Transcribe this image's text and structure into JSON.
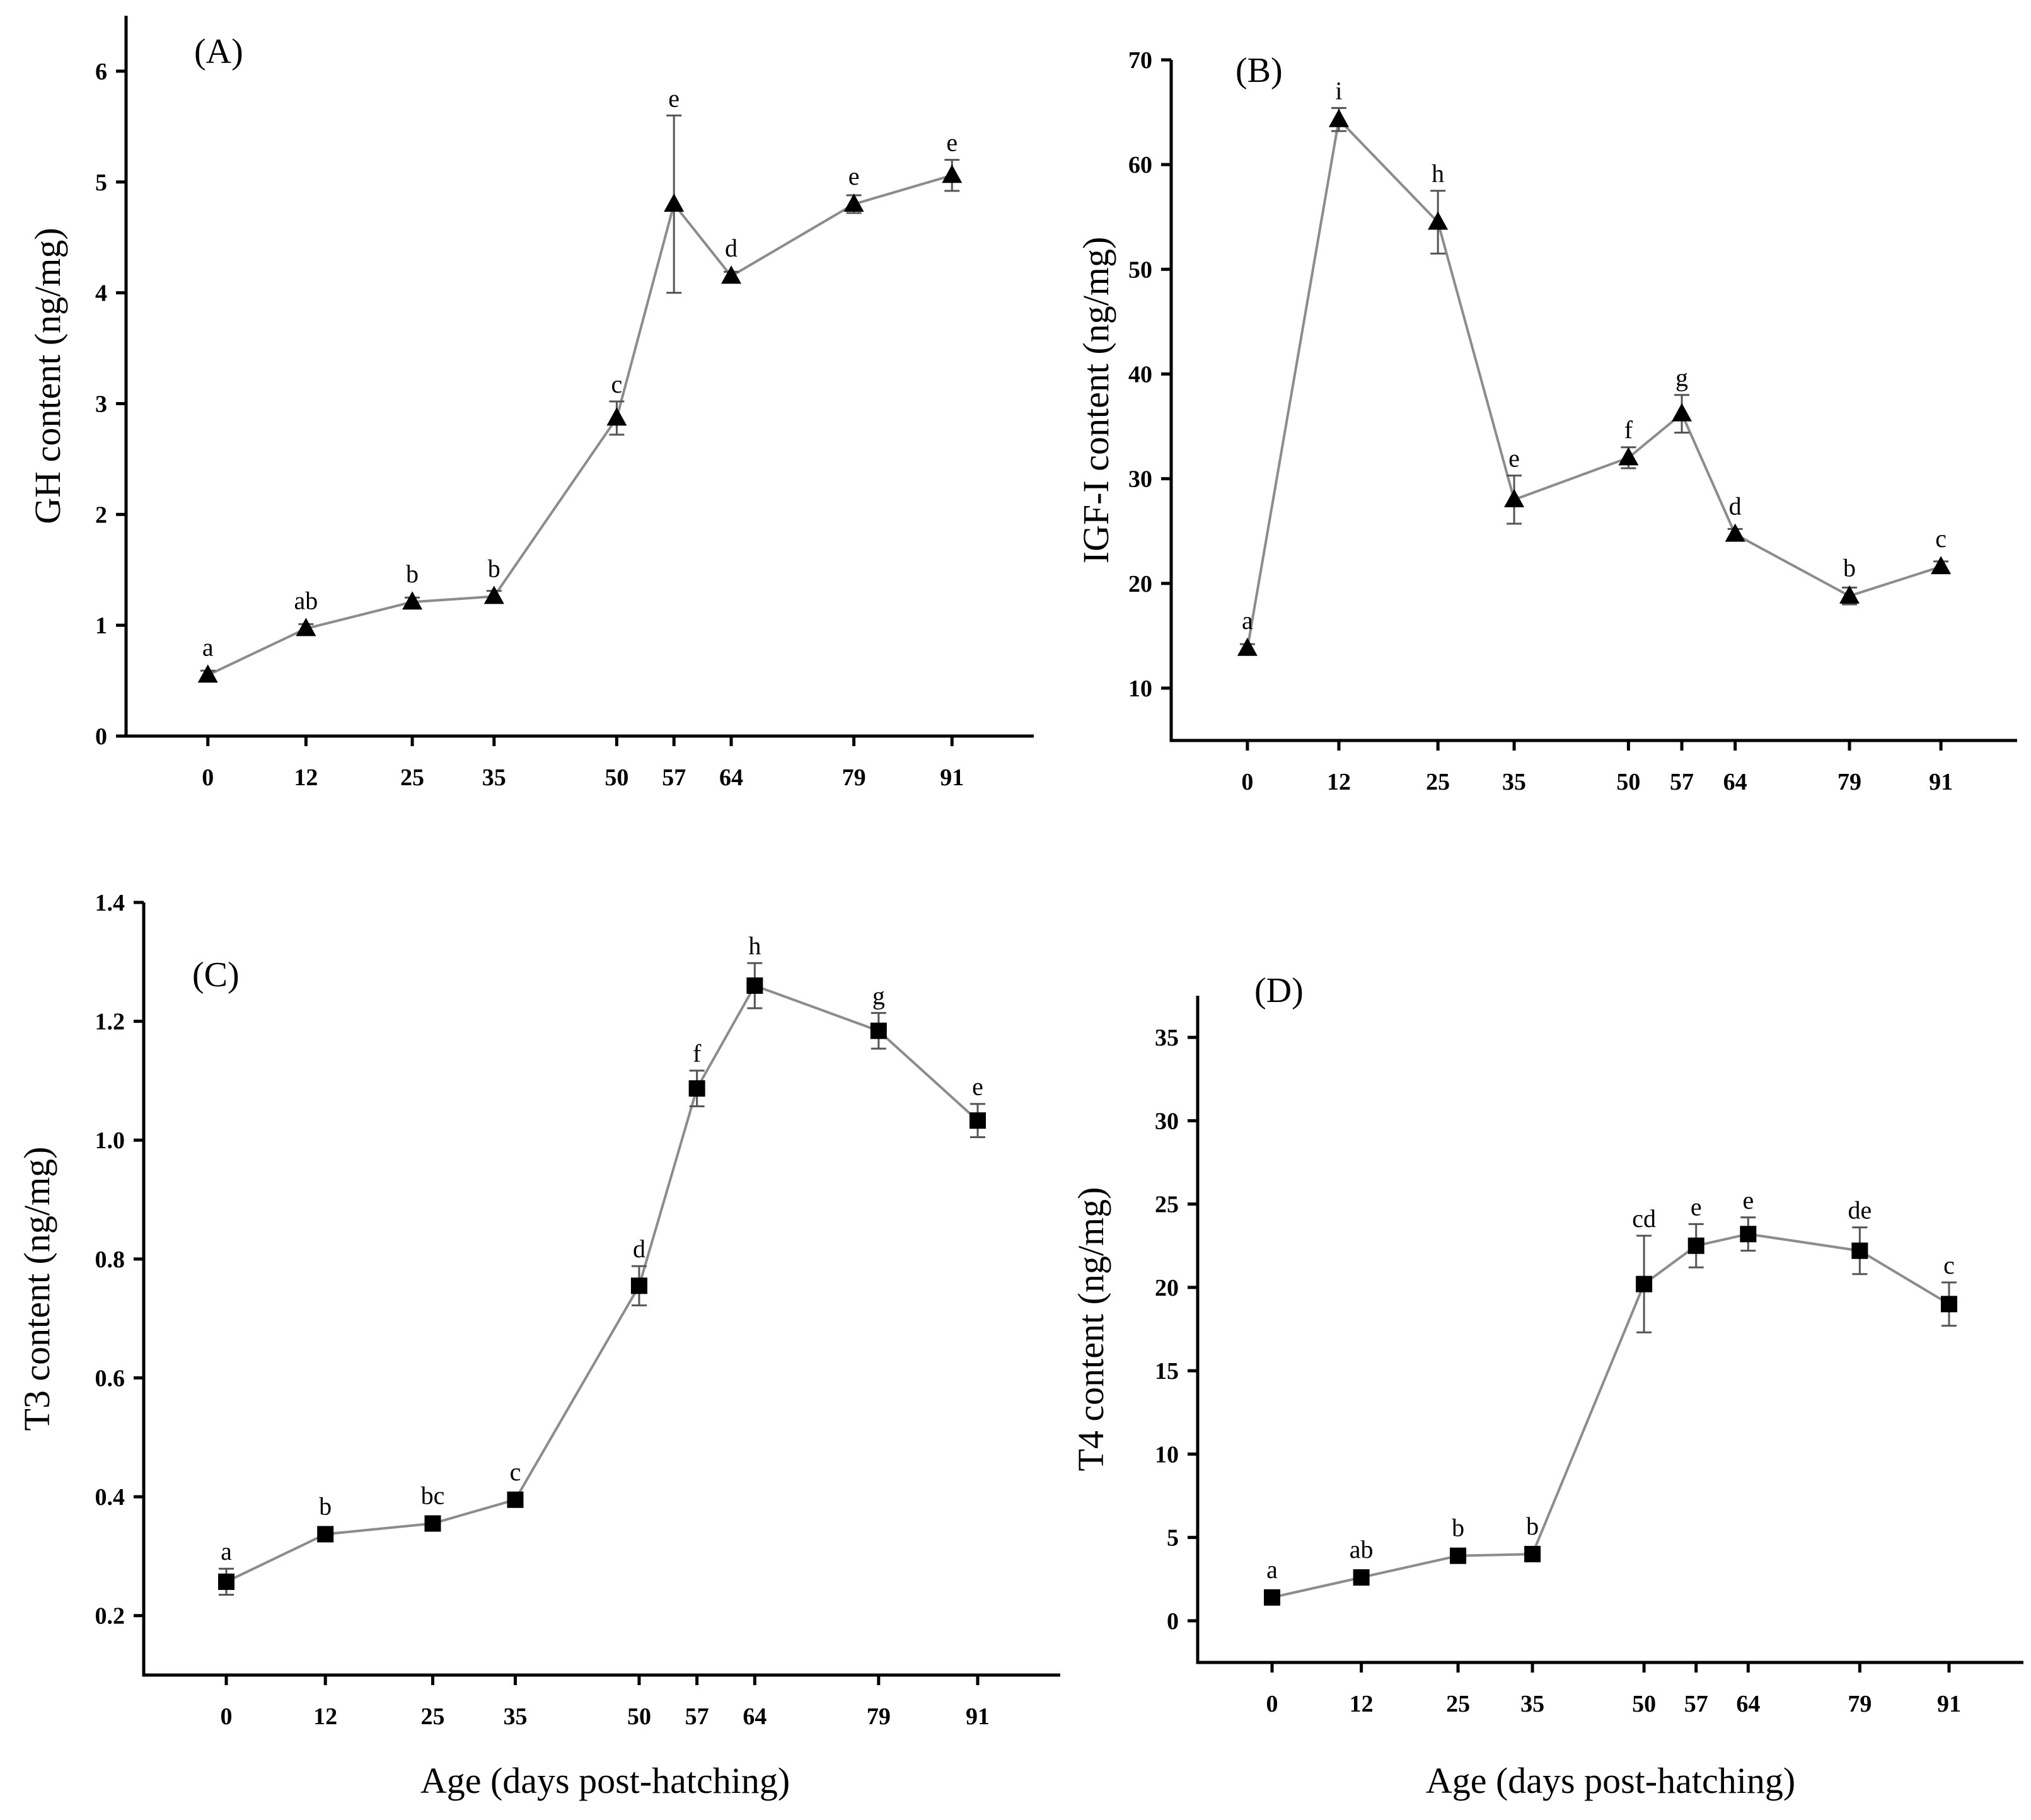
{
  "figure": {
    "x_axis_title": "Age (days post-hatching)"
  },
  "colors": {
    "line": "#8c8c8c",
    "marker": "#000000",
    "error_bar": "#555555"
  },
  "chart_data": [
    {
      "id": "A",
      "type": "line",
      "panel_label": "(A)",
      "marker": "triangle",
      "xlabel": "",
      "ylabel": "GH content (ng/mg)",
      "x": [
        0,
        12,
        25,
        35,
        50,
        57,
        64,
        79,
        91
      ],
      "values": [
        0.55,
        0.97,
        1.21,
        1.26,
        2.87,
        4.8,
        4.15,
        4.8,
        5.06
      ],
      "errors": [
        0.04,
        0.04,
        0.04,
        0.05,
        0.15,
        0.8,
        0.04,
        0.08,
        0.14
      ],
      "significance": [
        "a",
        "ab",
        "b",
        "b",
        "c",
        "e",
        "d",
        "e",
        "e"
      ],
      "ylim": [
        0,
        6.5
      ],
      "yticks": [
        0,
        1,
        2,
        3,
        4,
        5,
        6
      ],
      "xlim": [
        -10,
        101
      ],
      "xticks": [
        0,
        12,
        25,
        35,
        50,
        57,
        64,
        79,
        91
      ],
      "grid": false
    },
    {
      "id": "B",
      "type": "line",
      "panel_label": "(B)",
      "marker": "triangle",
      "xlabel": "",
      "ylabel": "IGF-I content (ng/mg)",
      "x": [
        0,
        12,
        25,
        35,
        50,
        57,
        64,
        79,
        91
      ],
      "values": [
        13.8,
        64.3,
        54.5,
        28.0,
        32.0,
        36.2,
        24.7,
        18.8,
        21.6
      ],
      "errors": [
        0.4,
        1.1,
        3.0,
        2.3,
        1.0,
        1.8,
        0.5,
        0.8,
        0.5
      ],
      "significance": [
        "a",
        "i",
        "h",
        "e",
        "f",
        "g",
        "d",
        "b",
        "c"
      ],
      "ylim": [
        5,
        70
      ],
      "yticks": [
        10,
        20,
        30,
        40,
        50,
        60,
        70
      ],
      "xlim": [
        -10,
        101
      ],
      "xticks": [
        0,
        12,
        25,
        35,
        50,
        57,
        64,
        79,
        91
      ],
      "grid": false
    },
    {
      "id": "C",
      "type": "line",
      "panel_label": "(C)",
      "marker": "square",
      "xlabel": "Age (days post-hatching)",
      "ylabel": "T3 content (ng/mg)",
      "x": [
        0,
        12,
        25,
        35,
        50,
        57,
        64,
        79,
        91
      ],
      "values": [
        0.257,
        0.337,
        0.355,
        0.395,
        0.755,
        1.087,
        1.26,
        1.184,
        1.033
      ],
      "errors": [
        0.022,
        0.012,
        0.008,
        0.008,
        0.033,
        0.03,
        0.038,
        0.03,
        0.028
      ],
      "significance": [
        "a",
        "b",
        "bc",
        "c",
        "d",
        "f",
        "h",
        "g",
        "e"
      ],
      "ylim": [
        0.1,
        1.4
      ],
      "yticks": [
        0.2,
        0.4,
        0.6,
        0.8,
        1.0,
        1.2,
        1.4
      ],
      "ytick_labels": [
        "0.2",
        "0.4",
        "0.6",
        "0.8",
        "1.0",
        "1.2",
        "1.4"
      ],
      "xlim": [
        -10,
        101
      ],
      "xticks": [
        0,
        12,
        25,
        35,
        50,
        57,
        64,
        79,
        91
      ],
      "grid": false
    },
    {
      "id": "D",
      "type": "line",
      "panel_label": "(D)",
      "marker": "square",
      "xlabel": "Age (days post-hatching)",
      "ylabel": "T4 content (ng/mg)",
      "x": [
        0,
        12,
        25,
        35,
        50,
        57,
        64,
        79,
        91
      ],
      "values": [
        1.4,
        2.6,
        3.9,
        4.0,
        20.2,
        22.5,
        23.2,
        22.2,
        19.0
      ],
      "errors": [
        0.2,
        0.2,
        0.2,
        0.2,
        2.9,
        1.3,
        1.0,
        1.4,
        1.3
      ],
      "significance": [
        "a",
        "ab",
        "b",
        "b",
        "cd",
        "e",
        "e",
        "de",
        "c"
      ],
      "ylim": [
        -2.5,
        37.5
      ],
      "yticks": [
        0,
        5,
        10,
        15,
        20,
        25,
        30,
        35
      ],
      "xlim": [
        -10,
        101
      ],
      "xticks": [
        0,
        12,
        25,
        35,
        50,
        57,
        64,
        79,
        91
      ],
      "grid": false
    }
  ]
}
